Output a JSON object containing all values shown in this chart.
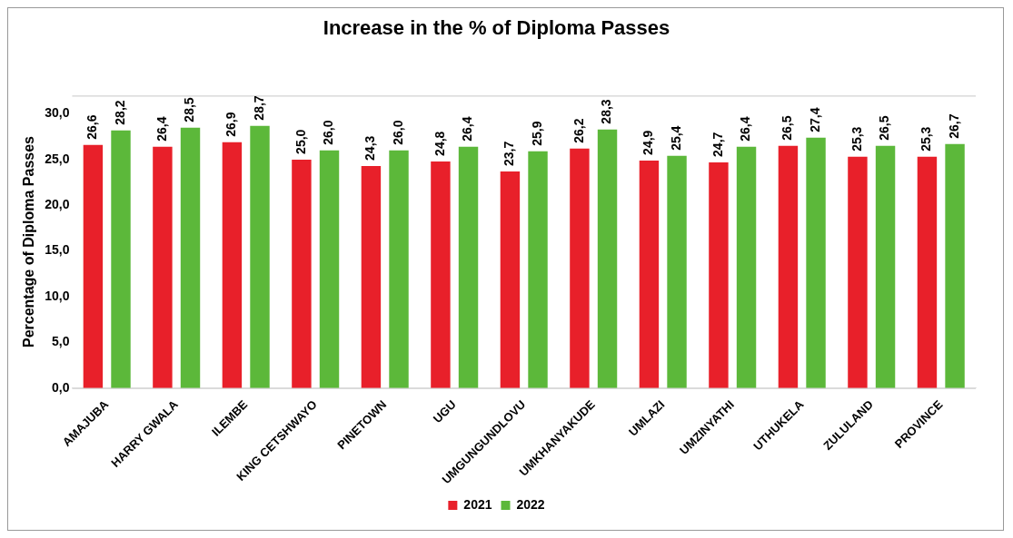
{
  "chart_data": {
    "type": "bar",
    "title": "Increase in the % of Diploma Passes",
    "ylabel": "Percentage of Diploma Passes",
    "categories": [
      "AMAJUBA",
      "HARRY GWALA",
      "ILEMBE",
      "KING CETSHWAYO",
      "PINETOWN",
      "UGU",
      "UMGUNGUNDLOVU",
      "UMKHANYAKUDE",
      "UMLAZI",
      "UMZINYATHI",
      "UTHUKELA",
      "ZULULAND",
      "PROVINCE"
    ],
    "series": [
      {
        "name": "2021",
        "color": "#e8202a",
        "values": [
          26.6,
          26.4,
          26.9,
          25.0,
          24.3,
          24.8,
          23.7,
          26.2,
          24.9,
          24.7,
          26.5,
          25.3,
          25.3
        ],
        "value_labels": [
          "26,6",
          "26,4",
          "26,9",
          "25,0",
          "24,3",
          "24,8",
          "23,7",
          "26,2",
          "24,9",
          "24,7",
          "26,5",
          "25,3",
          "25,3"
        ]
      },
      {
        "name": "2022",
        "color": "#5cb83a",
        "values": [
          28.2,
          28.5,
          28.7,
          26.0,
          26.0,
          26.4,
          25.9,
          28.3,
          25.4,
          26.4,
          27.4,
          26.5,
          26.7
        ],
        "value_labels": [
          "28,2",
          "28,5",
          "28,7",
          "26,0",
          "26,0",
          "26,4",
          "25,9",
          "28,3",
          "25,4",
          "26,4",
          "27,4",
          "26,5",
          "26,7"
        ]
      }
    ],
    "ylim": [
      0,
      32
    ],
    "yticks": [
      {
        "value": 0,
        "label": "0,0"
      },
      {
        "value": 5,
        "label": "5,0"
      },
      {
        "value": 10,
        "label": "10,0"
      },
      {
        "value": 15,
        "label": "15,0"
      },
      {
        "value": 20,
        "label": "20,0"
      },
      {
        "value": 25,
        "label": "25,0"
      },
      {
        "value": 30,
        "label": "30,0"
      }
    ],
    "grid": false,
    "legend": "bottom"
  }
}
